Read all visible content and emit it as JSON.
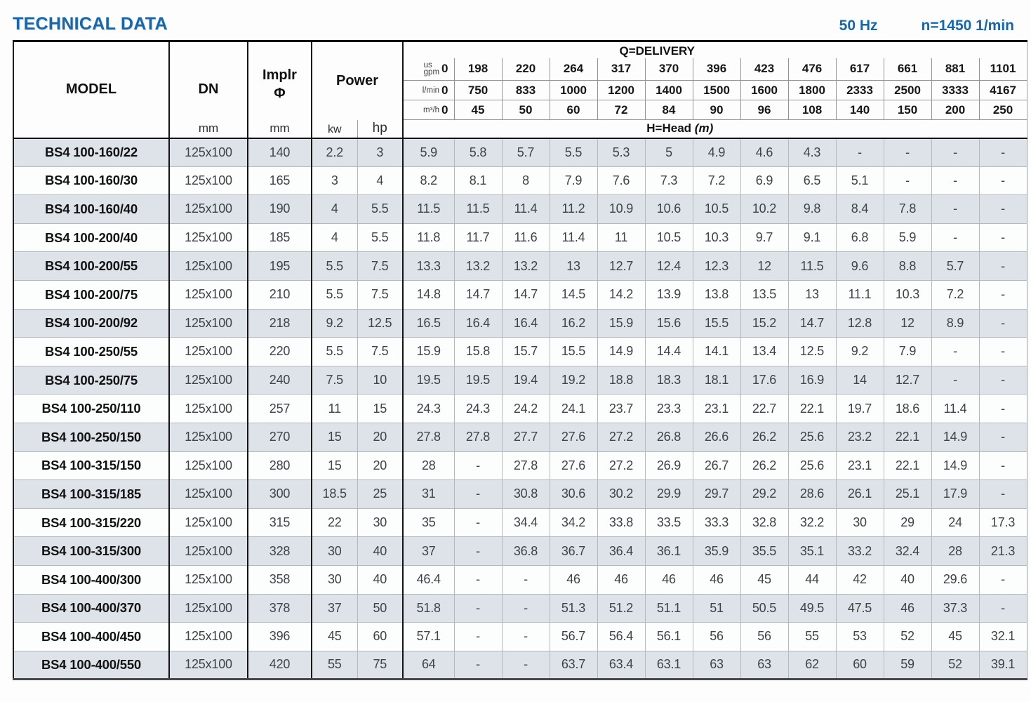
{
  "page": {
    "title": "TECHNICAL DATA",
    "frequency": "50 Hz",
    "speed": "n=1450 1/min"
  },
  "colors": {
    "accent_blue": "#1667ac",
    "stripe_row": "#dde3e9",
    "border_dark": "#141414"
  },
  "table": {
    "headers": {
      "model": "MODEL",
      "dn": "DN",
      "implr_line1": "Implr",
      "implr_line2": "Φ",
      "power": "Power",
      "unit_mm": "mm",
      "unit_kw": "kw",
      "unit_hp": "hp",
      "delivery_title": "Q=DELIVERY",
      "head_title": "H=Head",
      "head_unit": "(m)",
      "flow_rows": [
        {
          "label_lines": [
            "us",
            "gpm"
          ],
          "values": [
            "0",
            "198",
            "220",
            "264",
            "317",
            "370",
            "396",
            "423",
            "476",
            "617",
            "661",
            "881",
            "1101"
          ]
        },
        {
          "label_lines": [
            "l/min"
          ],
          "values": [
            "0",
            "750",
            "833",
            "1000",
            "1200",
            "1400",
            "1500",
            "1600",
            "1800",
            "2333",
            "2500",
            "3333",
            "4167"
          ]
        },
        {
          "label_lines": [
            "m³/h"
          ],
          "values": [
            "0",
            "45",
            "50",
            "60",
            "72",
            "84",
            "90",
            "96",
            "108",
            "140",
            "150",
            "200",
            "250"
          ]
        }
      ]
    },
    "rows": [
      {
        "model": "BS4 100-160/22",
        "dn": "125x100",
        "implr": "140",
        "kw": "2.2",
        "hp": "3",
        "head": [
          "5.9",
          "5.8",
          "5.7",
          "5.5",
          "5.3",
          "5",
          "4.9",
          "4.6",
          "4.3",
          "-",
          "-",
          "-",
          "-"
        ]
      },
      {
        "model": "BS4 100-160/30",
        "dn": "125x100",
        "implr": "165",
        "kw": "3",
        "hp": "4",
        "head": [
          "8.2",
          "8.1",
          "8",
          "7.9",
          "7.6",
          "7.3",
          "7.2",
          "6.9",
          "6.5",
          "5.1",
          "-",
          "-",
          "-"
        ]
      },
      {
        "model": "BS4 100-160/40",
        "dn": "125x100",
        "implr": "190",
        "kw": "4",
        "hp": "5.5",
        "head": [
          "11.5",
          "11.5",
          "11.4",
          "11.2",
          "10.9",
          "10.6",
          "10.5",
          "10.2",
          "9.8",
          "8.4",
          "7.8",
          "-",
          "-"
        ]
      },
      {
        "model": "BS4 100-200/40",
        "dn": "125x100",
        "implr": "185",
        "kw": "4",
        "hp": "5.5",
        "head": [
          "11.8",
          "11.7",
          "11.6",
          "11.4",
          "11",
          "10.5",
          "10.3",
          "9.7",
          "9.1",
          "6.8",
          "5.9",
          "-",
          "-"
        ]
      },
      {
        "model": "BS4 100-200/55",
        "dn": "125x100",
        "implr": "195",
        "kw": "5.5",
        "hp": "7.5",
        "head": [
          "13.3",
          "13.2",
          "13.2",
          "13",
          "12.7",
          "12.4",
          "12.3",
          "12",
          "11.5",
          "9.6",
          "8.8",
          "5.7",
          "-"
        ]
      },
      {
        "model": "BS4 100-200/75",
        "dn": "125x100",
        "implr": "210",
        "kw": "5.5",
        "hp": "7.5",
        "head": [
          "14.8",
          "14.7",
          "14.7",
          "14.5",
          "14.2",
          "13.9",
          "13.8",
          "13.5",
          "13",
          "11.1",
          "10.3",
          "7.2",
          "-"
        ]
      },
      {
        "model": "BS4 100-200/92",
        "dn": "125x100",
        "implr": "218",
        "kw": "9.2",
        "hp": "12.5",
        "head": [
          "16.5",
          "16.4",
          "16.4",
          "16.2",
          "15.9",
          "15.6",
          "15.5",
          "15.2",
          "14.7",
          "12.8",
          "12",
          "8.9",
          "-"
        ]
      },
      {
        "model": "BS4 100-250/55",
        "dn": "125x100",
        "implr": "220",
        "kw": "5.5",
        "hp": "7.5",
        "head": [
          "15.9",
          "15.8",
          "15.7",
          "15.5",
          "14.9",
          "14.4",
          "14.1",
          "13.4",
          "12.5",
          "9.2",
          "7.9",
          "-",
          "-"
        ]
      },
      {
        "model": "BS4 100-250/75",
        "dn": "125x100",
        "implr": "240",
        "kw": "7.5",
        "hp": "10",
        "head": [
          "19.5",
          "19.5",
          "19.4",
          "19.2",
          "18.8",
          "18.3",
          "18.1",
          "17.6",
          "16.9",
          "14",
          "12.7",
          "-",
          "-"
        ]
      },
      {
        "model": "BS4 100-250/110",
        "dn": "125x100",
        "implr": "257",
        "kw": "11",
        "hp": "15",
        "head": [
          "24.3",
          "24.3",
          "24.2",
          "24.1",
          "23.7",
          "23.3",
          "23.1",
          "22.7",
          "22.1",
          "19.7",
          "18.6",
          "11.4",
          "-"
        ]
      },
      {
        "model": "BS4 100-250/150",
        "dn": "125x100",
        "implr": "270",
        "kw": "15",
        "hp": "20",
        "head": [
          "27.8",
          "27.8",
          "27.7",
          "27.6",
          "27.2",
          "26.8",
          "26.6",
          "26.2",
          "25.6",
          "23.2",
          "22.1",
          "14.9",
          "-"
        ]
      },
      {
        "model": "BS4 100-315/150",
        "dn": "125x100",
        "implr": "280",
        "kw": "15",
        "hp": "20",
        "head": [
          "28",
          "-",
          "27.8",
          "27.6",
          "27.2",
          "26.9",
          "26.7",
          "26.2",
          "25.6",
          "23.1",
          "22.1",
          "14.9",
          "-"
        ]
      },
      {
        "model": "BS4 100-315/185",
        "dn": "125x100",
        "implr": "300",
        "kw": "18.5",
        "hp": "25",
        "head": [
          "31",
          "-",
          "30.8",
          "30.6",
          "30.2",
          "29.9",
          "29.7",
          "29.2",
          "28.6",
          "26.1",
          "25.1",
          "17.9",
          "-"
        ]
      },
      {
        "model": "BS4 100-315/220",
        "dn": "125x100",
        "implr": "315",
        "kw": "22",
        "hp": "30",
        "head": [
          "35",
          "-",
          "34.4",
          "34.2",
          "33.8",
          "33.5",
          "33.3",
          "32.8",
          "32.2",
          "30",
          "29",
          "24",
          "17.3"
        ]
      },
      {
        "model": "BS4 100-315/300",
        "dn": "125x100",
        "implr": "328",
        "kw": "30",
        "hp": "40",
        "head": [
          "37",
          "-",
          "36.8",
          "36.7",
          "36.4",
          "36.1",
          "35.9",
          "35.5",
          "35.1",
          "33.2",
          "32.4",
          "28",
          "21.3"
        ]
      },
      {
        "model": "BS4 100-400/300",
        "dn": "125x100",
        "implr": "358",
        "kw": "30",
        "hp": "40",
        "head": [
          "46.4",
          "-",
          "-",
          "46",
          "46",
          "46",
          "46",
          "45",
          "44",
          "42",
          "40",
          "29.6",
          "-"
        ]
      },
      {
        "model": "BS4 100-400/370",
        "dn": "125x100",
        "implr": "378",
        "kw": "37",
        "hp": "50",
        "head": [
          "51.8",
          "-",
          "-",
          "51.3",
          "51.2",
          "51.1",
          "51",
          "50.5",
          "49.5",
          "47.5",
          "46",
          "37.3",
          "-"
        ]
      },
      {
        "model": "BS4 100-400/450",
        "dn": "125x100",
        "implr": "396",
        "kw": "45",
        "hp": "60",
        "head": [
          "57.1",
          "-",
          "-",
          "56.7",
          "56.4",
          "56.1",
          "56",
          "56",
          "55",
          "53",
          "52",
          "45",
          "32.1"
        ]
      },
      {
        "model": "BS4 100-400/550",
        "dn": "125x100",
        "implr": "420",
        "kw": "55",
        "hp": "75",
        "head": [
          "64",
          "-",
          "-",
          "63.7",
          "63.4",
          "63.1",
          "63",
          "63",
          "62",
          "60",
          "59",
          "52",
          "39.1"
        ]
      }
    ]
  }
}
